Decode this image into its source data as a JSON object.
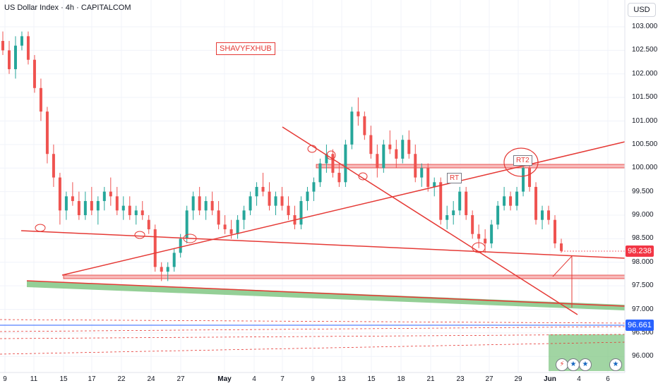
{
  "header": {
    "title": "US Dollar Index · 4h · CAPITALCOM",
    "currency": "USD"
  },
  "annotations": {
    "watermark": "SHAVYFXHUB",
    "rt": "RT",
    "rt2": "RT2"
  },
  "price_tags": {
    "current": "98.238",
    "line": "96.661"
  },
  "colors": {
    "up": "#26a69a",
    "down": "#ef5350",
    "trendline": "#e53935",
    "zone_green": "#81c784",
    "line_blue": "#2962ff",
    "price_red": "#f23645"
  },
  "event_icons": [
    "lightning-icon",
    "us-flag-icon",
    "us-flag-icon",
    "us-flag-icon"
  ],
  "chart_data": {
    "type": "candlestick",
    "title": "US Dollar Index · 4h · CAPITALCOM",
    "ylim": [
      95.8,
      103.2
    ],
    "y_ticks": [
      "103.000",
      "102.500",
      "102.000",
      "101.500",
      "101.000",
      "100.500",
      "100.000",
      "99.500",
      "99.000",
      "98.500",
      "98.000",
      "97.500",
      "97.000",
      "96.500",
      "96.000"
    ],
    "x_ticks": [
      "9",
      "11",
      "15",
      "17",
      "22",
      "24",
      "27",
      "May",
      "4",
      "7",
      "9",
      "13",
      "15",
      "18",
      "21",
      "23",
      "27",
      "29",
      "Jun",
      "4",
      "6"
    ],
    "grid": true,
    "last_price": 98.238,
    "series": [
      {
        "values": [
          [
            102.7,
            102.9,
            102.4,
            102.5
          ],
          [
            102.5,
            102.7,
            102.0,
            102.1
          ],
          [
            102.1,
            102.8,
            101.9,
            102.6
          ],
          [
            102.6,
            102.9,
            102.5,
            102.8
          ],
          [
            102.8,
            102.9,
            102.2,
            102.3
          ],
          [
            102.3,
            102.4,
            101.6,
            101.7
          ],
          [
            101.7,
            101.9,
            101.0,
            101.2
          ],
          [
            101.2,
            101.3,
            100.1,
            100.3
          ],
          [
            100.3,
            100.5,
            99.6,
            99.8
          ],
          [
            99.8,
            99.9,
            98.8,
            99.1
          ],
          [
            99.1,
            99.5,
            98.9,
            99.4
          ],
          [
            99.4,
            99.7,
            99.2,
            99.3
          ],
          [
            99.3,
            99.5,
            98.9,
            99.0
          ],
          [
            99.0,
            99.5,
            98.9,
            99.3
          ],
          [
            99.3,
            99.6,
            99.0,
            99.1
          ],
          [
            99.1,
            99.4,
            98.8,
            99.3
          ],
          [
            99.3,
            99.6,
            99.1,
            99.5
          ],
          [
            99.5,
            99.8,
            99.2,
            99.4
          ],
          [
            99.4,
            99.6,
            99.0,
            99.1
          ],
          [
            99.1,
            99.4,
            98.9,
            99.2
          ],
          [
            99.2,
            99.4,
            98.9,
            99.0
          ],
          [
            99.0,
            99.2,
            98.8,
            99.1
          ],
          [
            99.1,
            99.3,
            98.9,
            99.0
          ],
          [
            98.9,
            99.0,
            98.6,
            98.7
          ],
          [
            98.7,
            98.8,
            97.8,
            97.9
          ],
          [
            97.9,
            98.0,
            97.6,
            97.8
          ],
          [
            97.8,
            98.0,
            97.6,
            97.9
          ],
          [
            97.9,
            98.3,
            97.8,
            98.2
          ],
          [
            98.2,
            98.6,
            98.1,
            98.5
          ],
          [
            98.5,
            99.2,
            98.4,
            99.1
          ],
          [
            99.1,
            99.5,
            98.9,
            99.4
          ],
          [
            99.4,
            99.6,
            99.0,
            99.1
          ],
          [
            99.1,
            99.4,
            98.9,
            99.3
          ],
          [
            99.3,
            99.5,
            99.0,
            99.1
          ],
          [
            99.1,
            99.3,
            98.7,
            98.8
          ],
          [
            98.8,
            99.0,
            98.6,
            98.7
          ],
          [
            98.7,
            98.9,
            98.5,
            98.6
          ],
          [
            98.6,
            99.0,
            98.5,
            98.9
          ],
          [
            98.9,
            99.2,
            98.7,
            99.1
          ],
          [
            99.1,
            99.5,
            99.0,
            99.4
          ],
          [
            99.4,
            99.7,
            99.2,
            99.6
          ],
          [
            99.6,
            99.9,
            99.4,
            99.5
          ],
          [
            99.5,
            99.7,
            99.1,
            99.2
          ],
          [
            99.2,
            99.5,
            99.0,
            99.4
          ],
          [
            99.4,
            99.6,
            99.1,
            99.2
          ],
          [
            99.2,
            99.4,
            98.9,
            99.0
          ],
          [
            99.0,
            99.2,
            98.7,
            98.8
          ],
          [
            98.8,
            99.4,
            98.7,
            99.3
          ],
          [
            99.3,
            99.6,
            99.1,
            99.5
          ],
          [
            99.5,
            99.8,
            99.3,
            99.7
          ],
          [
            99.7,
            100.2,
            99.6,
            100.1
          ],
          [
            100.1,
            100.5,
            99.9,
            100.3
          ],
          [
            100.3,
            100.4,
            99.8,
            99.9
          ],
          [
            99.9,
            100.1,
            99.6,
            99.7
          ],
          [
            99.7,
            100.6,
            99.6,
            100.5
          ],
          [
            100.5,
            101.3,
            100.4,
            101.2
          ],
          [
            101.2,
            101.5,
            100.9,
            101.1
          ],
          [
            101.1,
            101.2,
            100.6,
            100.7
          ],
          [
            100.7,
            100.9,
            100.2,
            100.3
          ],
          [
            100.3,
            100.5,
            99.8,
            100.0
          ],
          [
            100.0,
            100.6,
            99.9,
            100.5
          ],
          [
            100.5,
            100.8,
            100.3,
            100.4
          ],
          [
            100.4,
            100.6,
            100.0,
            100.2
          ],
          [
            100.2,
            100.7,
            100.1,
            100.6
          ],
          [
            100.6,
            100.8,
            100.2,
            100.3
          ],
          [
            100.3,
            100.5,
            99.7,
            99.8
          ],
          [
            99.8,
            100.1,
            99.6,
            100.0
          ],
          [
            100.0,
            100.1,
            99.5,
            99.6
          ],
          [
            99.6,
            99.8,
            99.4,
            99.7
          ],
          [
            99.7,
            99.8,
            98.8,
            98.9
          ],
          [
            98.9,
            99.2,
            98.7,
            99.0
          ],
          [
            99.0,
            99.3,
            98.8,
            99.1
          ],
          [
            99.1,
            99.6,
            99.0,
            99.5
          ],
          [
            99.5,
            99.6,
            98.9,
            99.0
          ],
          [
            99.0,
            99.1,
            98.5,
            98.6
          ],
          [
            98.6,
            98.8,
            98.3,
            98.5
          ],
          [
            98.5,
            98.7,
            98.2,
            98.4
          ],
          [
            98.4,
            98.9,
            98.3,
            98.8
          ],
          [
            98.8,
            99.3,
            98.7,
            99.2
          ],
          [
            99.2,
            99.6,
            99.1,
            99.4
          ],
          [
            99.4,
            99.5,
            99.1,
            99.2
          ],
          [
            99.2,
            99.6,
            99.1,
            99.5
          ],
          [
            99.5,
            100.1,
            99.4,
            100.0
          ],
          [
            100.0,
            100.1,
            99.5,
            99.6
          ],
          [
            99.6,
            99.7,
            98.8,
            98.9
          ],
          [
            98.9,
            99.2,
            98.7,
            99.1
          ],
          [
            99.1,
            99.2,
            98.8,
            98.9
          ],
          [
            98.9,
            99.0,
            98.3,
            98.4
          ],
          [
            98.4,
            98.5,
            98.2,
            98.24
          ]
        ]
      }
    ]
  }
}
